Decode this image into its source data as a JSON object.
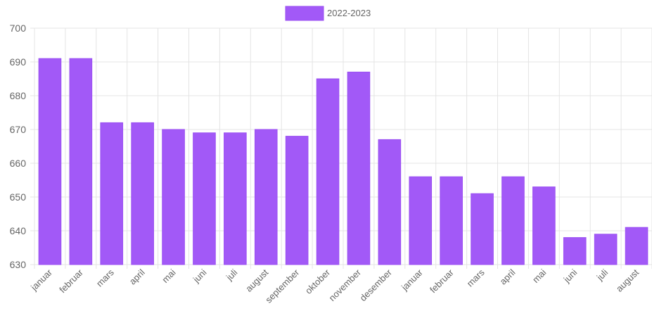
{
  "chart_data": {
    "type": "bar",
    "categories": [
      "januar",
      "februar",
      "mars",
      "april",
      "mai",
      "juni",
      "juli",
      "august",
      "september",
      "oktober",
      "november",
      "desember",
      "januar",
      "februar",
      "mars",
      "april",
      "mai",
      "juni",
      "juli",
      "august"
    ],
    "series": [
      {
        "name": "2022-2023",
        "values": [
          691,
          691,
          672,
          672,
          670,
          669,
          669,
          670,
          668,
          685,
          687,
          667,
          656,
          656,
          651,
          656,
          653,
          638,
          639,
          641
        ]
      }
    ],
    "ylim": [
      630,
      700
    ],
    "yticks": [
      630,
      640,
      650,
      660,
      670,
      680,
      690,
      700
    ],
    "grid": true,
    "legend_position": "top-center",
    "bar_color": "#a259f7",
    "bar_border_color": "#9a4ff2"
  }
}
